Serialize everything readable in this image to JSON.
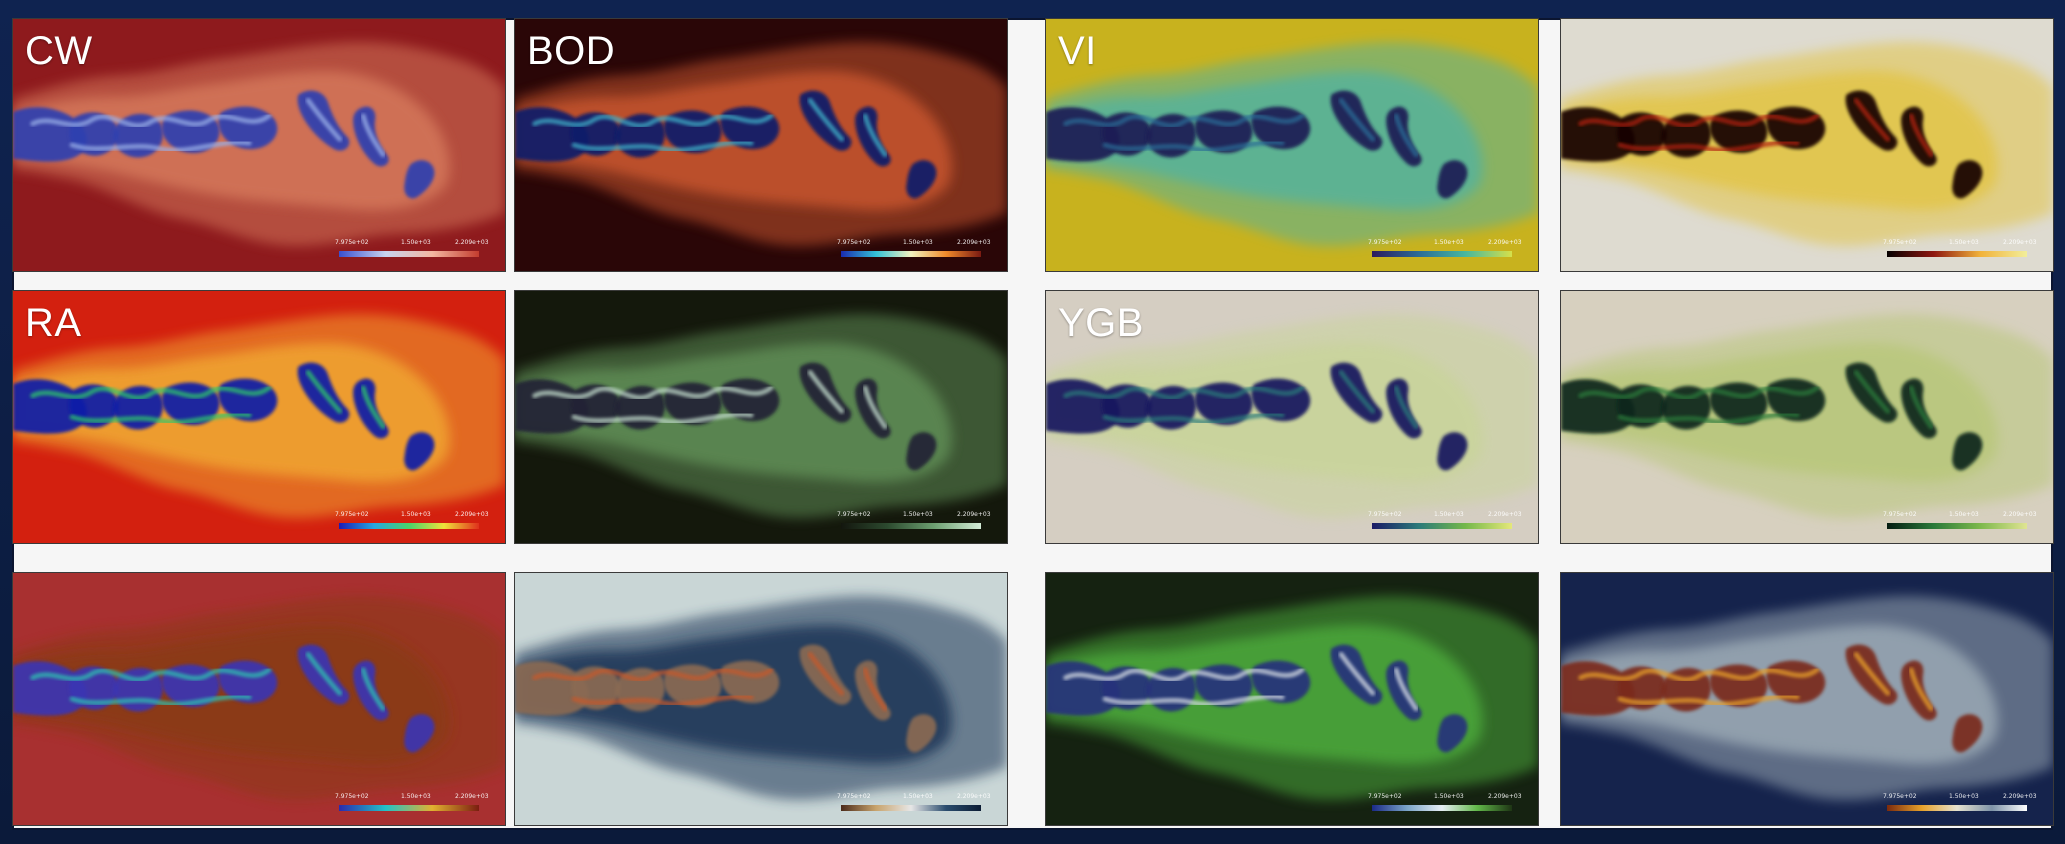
{
  "panels": [
    {
      "id": "cw",
      "label": "CW",
      "colors": {
        "background": "#8e1a1d",
        "mid": "#d4775a",
        "core": "#2f3fb0",
        "accent": "#9ab0e8"
      },
      "legend_gradient": [
        "#3a4fd0",
        "#c8d3ee",
        "#f3b7a1",
        "#c33c2e"
      ],
      "legend_ticks": [
        "7.975e+02",
        "1.50e+03",
        "2.209e+03"
      ]
    },
    {
      "id": "bod",
      "label": "BOD",
      "colors": {
        "background": "#2a0607",
        "mid": "#c6542e",
        "core": "#0b1b6a",
        "accent": "#3fb0c8"
      },
      "legend_gradient": [
        "#1a2bb0",
        "#33c1d6",
        "#f2f2c0",
        "#f08a2b",
        "#7a1a12"
      ],
      "legend_ticks": [
        "7.975e+02",
        "1.50e+03",
        "2.209e+03"
      ]
    },
    {
      "id": "vi",
      "label": "VI",
      "colors": {
        "background": "#c8b21e",
        "mid": "#57b29b",
        "core": "#1c1f55",
        "accent": "#2b6c96"
      },
      "legend_gradient": [
        "#2c1a5e",
        "#2b6c96",
        "#47b79e",
        "#d6e04a"
      ],
      "legend_ticks": [
        "7.975e+02",
        "1.50e+03",
        "2.209e+03"
      ]
    },
    {
      "id": "yellow-red",
      "label": "",
      "colors": {
        "background": "#dedbd0",
        "mid": "#e2c54a",
        "core": "#160406",
        "accent": "#b3220f"
      },
      "legend_gradient": [
        "#050000",
        "#8e1710",
        "#f1b23a",
        "#f2ee9a"
      ],
      "legend_ticks": [
        "7.975e+02",
        "1.50e+03",
        "2.209e+03"
      ]
    },
    {
      "id": "ra",
      "label": "RA",
      "colors": {
        "background": "#d3200f",
        "mid": "#f0a531",
        "core": "#0f1ba8",
        "accent": "#2fc86a"
      },
      "legend_gradient": [
        "#1a1ab6",
        "#26a7e0",
        "#48d46a",
        "#f0e33a",
        "#e0301c"
      ],
      "legend_ticks": [
        "7.975e+02",
        "1.50e+03",
        "2.209e+03"
      ]
    },
    {
      "id": "green-dark",
      "label": "",
      "colors": {
        "background": "#14180c",
        "mid": "#5f8c54",
        "core": "#222436",
        "accent": "#c2dccc"
      },
      "legend_gradient": [
        "#13160e",
        "#2c4a2f",
        "#6da071",
        "#d4ecd8"
      ],
      "legend_ticks": [
        "7.975e+02",
        "1.50e+03",
        "2.209e+03"
      ]
    },
    {
      "id": "ygb",
      "label": "YGB",
      "colors": {
        "background": "#d5cec2",
        "mid": "#c9d49b",
        "core": "#16195e",
        "accent": "#2b7a7a"
      },
      "legend_gradient": [
        "#1a1a66",
        "#2b7a7a",
        "#74b84a",
        "#e5e87a"
      ],
      "legend_ticks": [
        "7.975e+02",
        "1.50e+03",
        "2.209e+03"
      ]
    },
    {
      "id": "green-light",
      "label": "",
      "colors": {
        "background": "#d7d0bf",
        "mid": "#b9c77c",
        "core": "#07271a",
        "accent": "#2a7a3a"
      },
      "legend_gradient": [
        "#041c12",
        "#2a7a3a",
        "#7db94c",
        "#e0e493"
      ],
      "legend_ticks": [
        "7.975e+02",
        "1.50e+03",
        "2.209e+03"
      ]
    },
    {
      "id": "tri-red",
      "label": "",
      "colors": {
        "background": "#a83030",
        "mid": "#8a3a13",
        "core": "#3a34b3",
        "accent": "#2fc3b0"
      },
      "legend_gradient": [
        "#2a2ab0",
        "#23c2c7",
        "#e2b130",
        "#7a1d10"
      ],
      "legend_ticks": [
        "7.975e+02",
        "1.50e+03",
        "2.209e+03"
      ]
    },
    {
      "id": "navy-light",
      "label": "",
      "colors": {
        "background": "#c9d6d6",
        "mid": "#1f3656",
        "core": "#8a6b52",
        "accent": "#c8582b"
      },
      "legend_gradient": [
        "#4b2a1a",
        "#c8a36c",
        "#e6e6e6",
        "#2a4c6e",
        "#0b1b33"
      ],
      "legend_ticks": [
        "7.975e+02",
        "1.50e+03",
        "2.209e+03"
      ]
    },
    {
      "id": "green-ice",
      "label": "",
      "colors": {
        "background": "#152211",
        "mid": "#4ba83b",
        "core": "#28327c",
        "accent": "#d5dce4"
      },
      "legend_gradient": [
        "#1a2a88",
        "#7aa4c8",
        "#e6eef4",
        "#62b94a",
        "#1e3514"
      ],
      "legend_ticks": [
        "7.975e+02",
        "1.50e+03",
        "2.209e+03"
      ]
    },
    {
      "id": "navy-fire",
      "label": "",
      "colors": {
        "background": "#15234c",
        "mid": "#9aa8b4",
        "core": "#7a2a1a",
        "accent": "#e9a12a"
      },
      "legend_gradient": [
        "#7a2a0d",
        "#e6a12b",
        "#e6e2cf",
        "#7e93a8",
        "#ffffff"
      ],
      "legend_ticks": [
        "7.975e+02",
        "1.50e+03",
        "2.209e+03"
      ]
    }
  ]
}
